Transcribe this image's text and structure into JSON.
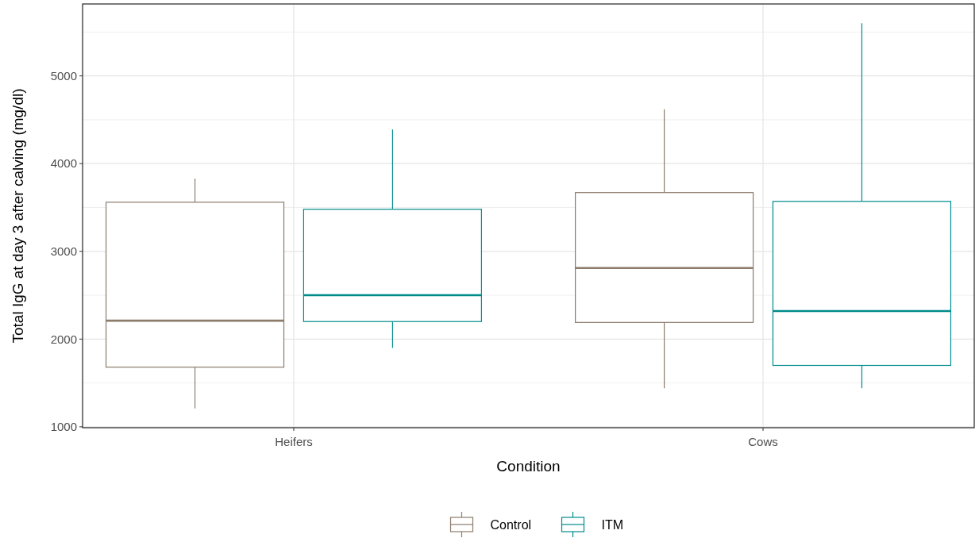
{
  "chart_data": {
    "type": "box",
    "xlabel": "Condition",
    "ylabel": "Total IgG at day 3 after calving (mg/dl)",
    "categories": [
      "Heifers",
      "Cows"
    ],
    "ylim": [
      990,
      5820
    ],
    "yticks": [
      1000,
      2000,
      3000,
      4000,
      5000
    ],
    "grid": true,
    "legend": "bottom",
    "series": [
      {
        "name": "Control",
        "color": "#8c7b6b",
        "boxes": [
          {
            "low": 1210,
            "q1": 1680,
            "median": 2210,
            "q3": 3560,
            "high": 3830
          },
          {
            "low": 1440,
            "q1": 2190,
            "median": 2810,
            "q3": 3670,
            "high": 4620
          }
        ]
      },
      {
        "name": "ITM",
        "color": "#008b8b",
        "boxes": [
          {
            "low": 1900,
            "q1": 2200,
            "median": 2500,
            "q3": 3480,
            "high": 4390
          },
          {
            "low": 1440,
            "q1": 1700,
            "median": 2320,
            "q3": 3570,
            "high": 5600
          }
        ]
      }
    ]
  }
}
